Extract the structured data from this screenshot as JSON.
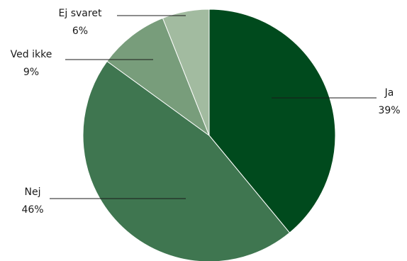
{
  "chart_data": {
    "type": "pie",
    "title": "",
    "slices": [
      {
        "label": "Ja",
        "value": 39,
        "display": "39%",
        "color": "#004a1d"
      },
      {
        "label": "Nej",
        "value": 46,
        "display": "46%",
        "color": "#3f7650"
      },
      {
        "label": "Ved ikke",
        "value": 9,
        "display": "9%",
        "color": "#789d7b"
      },
      {
        "label": "Ej svaret",
        "value": 6,
        "display": "6%",
        "color": "#a2bba0"
      }
    ],
    "legend": "none",
    "data_labels": "outside with leader lines"
  }
}
